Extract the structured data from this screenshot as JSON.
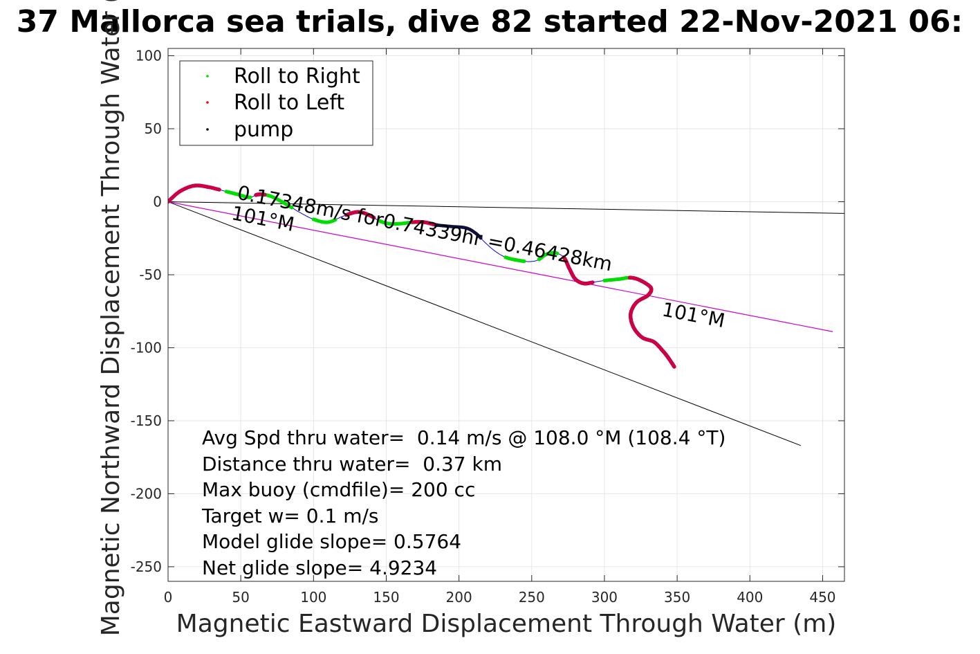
{
  "chart_data": {
    "type": "scatter",
    "title": "37 Mallorca sea trials, dive 82 started 22-Nov-2021 06:",
    "xlabel": "Magnetic Eastward Displacement Through Water (m)",
    "ylabel": "Magnetic Northward Displacement Through Water (",
    "xlim": [
      0,
      465
    ],
    "ylim": [
      -260,
      105
    ],
    "xticks": [
      0,
      50,
      100,
      150,
      200,
      250,
      300,
      350,
      400,
      450
    ],
    "yticks": [
      100,
      50,
      0,
      -50,
      -100,
      -150,
      -200,
      -250
    ],
    "grid": true,
    "legend_position": "top-left",
    "legend": [
      {
        "label": "Roll to Right",
        "color": "#00dd00"
      },
      {
        "label": "Roll to Left",
        "color": "#ff0000"
      },
      {
        "label": "pump",
        "color": "#000000"
      }
    ],
    "track": {
      "color": "#0000ff",
      "points": [
        [
          0,
          0
        ],
        [
          8,
          7
        ],
        [
          18,
          11
        ],
        [
          28,
          10
        ],
        [
          40,
          7
        ],
        [
          48,
          5
        ],
        [
          56,
          3
        ],
        [
          62,
          5
        ],
        [
          70,
          4
        ],
        [
          80,
          -1
        ],
        [
          90,
          -7
        ],
        [
          100,
          -12
        ],
        [
          110,
          -14
        ],
        [
          120,
          -10
        ],
        [
          130,
          -7
        ],
        [
          138,
          -9
        ],
        [
          145,
          -13
        ],
        [
          152,
          -15
        ],
        [
          160,
          -15
        ],
        [
          168,
          -14
        ],
        [
          176,
          -14
        ],
        [
          185,
          -16
        ],
        [
          195,
          -17
        ],
        [
          205,
          -18
        ],
        [
          212,
          -22
        ],
        [
          218,
          -28
        ],
        [
          225,
          -34
        ],
        [
          232,
          -38
        ],
        [
          240,
          -40
        ],
        [
          248,
          -41
        ],
        [
          254,
          -40
        ],
        [
          260,
          -36
        ],
        [
          266,
          -35
        ],
        [
          272,
          -38
        ],
        [
          276,
          -46
        ],
        [
          280,
          -53
        ],
        [
          286,
          -56
        ],
        [
          293,
          -55
        ],
        [
          300,
          -54
        ],
        [
          310,
          -53
        ],
        [
          318,
          -52
        ],
        [
          325,
          -54
        ],
        [
          332,
          -59
        ],
        [
          330,
          -64
        ],
        [
          322,
          -69
        ],
        [
          318,
          -77
        ],
        [
          320,
          -86
        ],
        [
          326,
          -93
        ],
        [
          334,
          -96
        ],
        [
          340,
          -102
        ],
        [
          344,
          -107
        ],
        [
          348,
          -113
        ]
      ]
    },
    "roll_right_segments": [
      [
        40,
        57
      ],
      [
        60,
        85
      ],
      [
        100,
        115
      ],
      [
        145,
        168
      ],
      [
        232,
        245
      ],
      [
        255,
        268
      ],
      [
        300,
        335
      ]
    ],
    "roll_left_segments": [
      [
        0,
        36
      ],
      [
        60,
        67
      ],
      [
        122,
        142
      ],
      [
        168,
        185
      ],
      [
        272,
        292
      ],
      [
        317,
        350
      ]
    ],
    "pump_segments": [
      [
        185,
        215
      ]
    ],
    "reference_lines": [
      {
        "name": "heading-line",
        "color": "#000000",
        "from": [
          0,
          0
        ],
        "to": [
          465,
          -8
        ]
      },
      {
        "name": "heading-line-2",
        "color": "#000000",
        "from": [
          0,
          0
        ],
        "to": [
          435,
          -167
        ]
      },
      {
        "name": "target-line",
        "color": "#cc00cc",
        "from": [
          0,
          0
        ],
        "to": [
          457,
          -89
        ]
      }
    ],
    "annotations": [
      {
        "text": "0.17348m/s for0.74339hr =0.46428km",
        "x": 47,
        "y": 2,
        "angle": 10.9
      },
      {
        "text": "101°M",
        "x": 43,
        "y": -12,
        "angle": 10.9
      },
      {
        "text": "101°M",
        "x": 339,
        "y": -78,
        "angle": 10.9
      }
    ],
    "stats": [
      "Avg Spd thru water=  0.14 m/s @ 108.0 °M (108.4 °T)",
      "Distance thru water=  0.37 km",
      "Max buoy (cmdfile)= 200 cc",
      "Target w= 0.1 m/s",
      "Model glide slope= 0.5764",
      "Net glide slope= 4.9234"
    ]
  }
}
